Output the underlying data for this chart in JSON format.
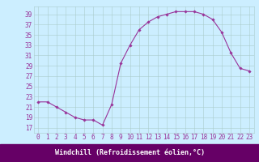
{
  "x": [
    0,
    1,
    2,
    3,
    4,
    5,
    6,
    7,
    8,
    9,
    10,
    11,
    12,
    13,
    14,
    15,
    16,
    17,
    18,
    19,
    20,
    21,
    22,
    23
  ],
  "y": [
    22,
    22,
    21,
    20,
    19,
    18.5,
    18.5,
    17.5,
    21.5,
    29.5,
    33,
    36,
    37.5,
    38.5,
    39,
    39.5,
    39.5,
    39.5,
    39,
    38,
    35.5,
    31.5,
    28.5,
    28
  ],
  "line_color": "#993399",
  "marker": "D",
  "marker_size": 1.8,
  "bg_color": "#cceeff",
  "grid_color": "#aacccc",
  "xlabel": "Windchill (Refroidissement éolien,°C)",
  "xlabel_bg": "#660066",
  "xlabel_color": "#ffffff",
  "ylabel_ticks": [
    17,
    19,
    21,
    23,
    25,
    27,
    29,
    31,
    33,
    35,
    37,
    39
  ],
  "xtick_labels": [
    "0",
    "1",
    "2",
    "3",
    "4",
    "5",
    "6",
    "7",
    "8",
    "9",
    "10",
    "11",
    "12",
    "13",
    "14",
    "15",
    "16",
    "17",
    "18",
    "19",
    "20",
    "21",
    "22",
    "23"
  ],
  "ylim": [
    16.0,
    40.5
  ],
  "xlim": [
    -0.5,
    23.5
  ],
  "tick_fontsize": 5.5,
  "xlabel_fontsize": 6.0,
  "label_color": "#993399"
}
